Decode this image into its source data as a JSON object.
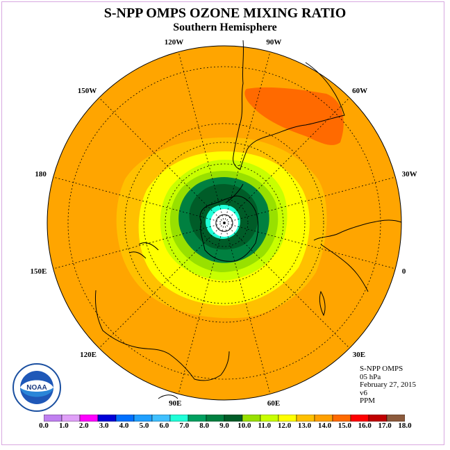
{
  "title": "S-NPP OMPS OZONE MIXING RATIO",
  "subtitle": "Southern Hemisphere",
  "longitude_labels": [
    "90W",
    "60W",
    "30W",
    "0",
    "30E",
    "60E",
    "90E",
    "120E",
    "150E",
    "180",
    "150W",
    "120W"
  ],
  "info": {
    "instrument": "S-NPP OMPS",
    "level": "05 hPa",
    "date": "February 27, 2015",
    "version": "v6",
    "units": "PPM"
  },
  "colorbar": {
    "labels": [
      "0.0",
      "1.0",
      "2.0",
      "3.0",
      "4.0",
      "5.0",
      "6.0",
      "7.0",
      "8.0",
      "9.0",
      "10.0",
      "11.0",
      "12.0",
      "13.0",
      "14.0",
      "15.0",
      "16.0",
      "17.0",
      "18.0"
    ],
    "colors": [
      "#c080f0",
      "#e0a0f8",
      "#ff00ff",
      "#0000d8",
      "#0070ff",
      "#20a0ff",
      "#40c0ff",
      "#20ffd8",
      "#00a060",
      "#008040",
      "#005c28",
      "#98e000",
      "#c8ff00",
      "#ffff00",
      "#ffc000",
      "#ffa000",
      "#ff6a00",
      "#ff0000",
      "#c00000",
      "#8c5a3c"
    ]
  },
  "logo_text": "NOAA",
  "colors": {
    "background_field": "#ffa500",
    "frame": "#d8a8e0"
  }
}
